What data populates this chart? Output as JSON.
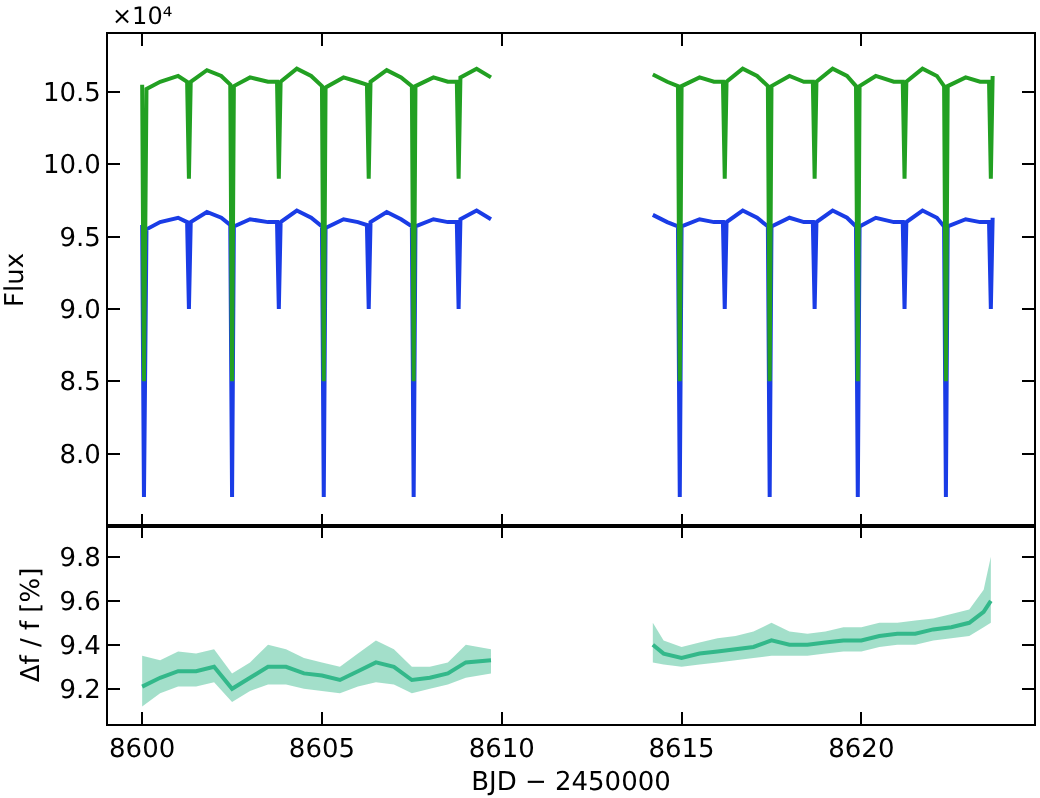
{
  "chart_data": [
    {
      "type": "line",
      "ylabel": "Flux",
      "annotations": [
        "×10⁴"
      ],
      "xlim": [
        8599.05,
        8624.8
      ],
      "xticks": [
        8600,
        8605,
        8610,
        8615,
        8620
      ],
      "ylim": [
        7.5,
        10.9
      ],
      "yticks": [
        {
          "value": 8,
          "label": "8.0"
        },
        8.5,
        {
          "value": 9,
          "label": "9.0"
        },
        9.5,
        {
          "value": 10,
          "label": "10.0"
        },
        10.5
      ],
      "tick_labels": "y",
      "marker": "none",
      "line_style": "solid",
      "series": [
        {
          "color": "#1a3ce6",
          "x": [
            8600.0,
            8600.05,
            8600.12,
            8600.5,
            8601.0,
            8601.25,
            8601.3,
            8601.35,
            8601.8,
            8602.2,
            8602.45,
            8602.5,
            8602.55,
            8603.0,
            8603.5,
            8603.75,
            8603.8,
            8603.85,
            8604.3,
            8604.7,
            8605.0,
            8605.05,
            8605.1,
            8605.6,
            8606.0,
            8606.25,
            8606.3,
            8606.35,
            8606.8,
            8607.2,
            8607.5,
            8607.55,
            8607.6,
            8608.1,
            8608.5,
            8608.75,
            8608.8,
            8608.85,
            8609.3,
            8609.7,
            8612,
            8614.2,
            8614.6,
            8614.9,
            8614.95,
            8615.0,
            8615.5,
            8615.9,
            8616.15,
            8616.2,
            8616.25,
            8616.7,
            8617.1,
            8617.4,
            8617.45,
            8617.5,
            8618.0,
            8618.4,
            8618.65,
            8618.7,
            8618.75,
            8619.2,
            8619.6,
            8619.85,
            8619.9,
            8619.95,
            8620.4,
            8620.9,
            8621.15,
            8621.2,
            8621.25,
            8621.7,
            8622.1,
            8622.3,
            8622.35,
            8622.4,
            8622.9,
            8623.3,
            8623.55,
            8623.6,
            8623.65
          ],
          "values": [
            9.58,
            7.7,
            9.55,
            9.6,
            9.63,
            9.6,
            9.0,
            9.6,
            9.67,
            9.63,
            9.58,
            7.7,
            9.57,
            9.62,
            9.6,
            9.6,
            9.0,
            9.6,
            9.68,
            9.63,
            9.57,
            7.7,
            9.56,
            9.62,
            9.6,
            9.58,
            9.0,
            9.6,
            9.67,
            9.62,
            9.57,
            7.7,
            9.57,
            9.62,
            9.6,
            9.6,
            9.0,
            9.62,
            9.68,
            9.62,
            null,
            9.65,
            9.6,
            9.57,
            7.7,
            9.57,
            9.62,
            9.6,
            9.6,
            9.0,
            9.6,
            9.68,
            9.63,
            9.57,
            7.7,
            9.57,
            9.63,
            9.6,
            9.6,
            9.0,
            9.6,
            9.68,
            9.63,
            9.57,
            7.7,
            9.57,
            9.63,
            9.6,
            9.6,
            9.0,
            9.6,
            9.68,
            9.63,
            9.57,
            7.7,
            9.57,
            9.62,
            9.6,
            9.6,
            9.0,
            9.63
          ]
        },
        {
          "color": "#22a022",
          "x": [
            8600.0,
            8600.05,
            8600.12,
            8600.5,
            8601.0,
            8601.25,
            8601.3,
            8601.35,
            8601.8,
            8602.2,
            8602.45,
            8602.5,
            8602.55,
            8603.0,
            8603.5,
            8603.75,
            8603.8,
            8603.85,
            8604.3,
            8604.7,
            8605.0,
            8605.05,
            8605.1,
            8605.6,
            8606.0,
            8606.25,
            8606.3,
            8606.35,
            8606.8,
            8607.2,
            8607.5,
            8607.55,
            8607.6,
            8608.1,
            8608.5,
            8608.75,
            8608.8,
            8608.85,
            8609.3,
            8609.7,
            8612,
            8614.2,
            8614.6,
            8614.9,
            8614.95,
            8615.0,
            8615.5,
            8615.9,
            8616.15,
            8616.2,
            8616.25,
            8616.7,
            8617.1,
            8617.4,
            8617.45,
            8617.5,
            8618.0,
            8618.4,
            8618.65,
            8618.7,
            8618.75,
            8619.2,
            8619.6,
            8619.85,
            8619.9,
            8619.95,
            8620.4,
            8620.9,
            8621.15,
            8621.2,
            8621.25,
            8621.7,
            8622.1,
            8622.3,
            8622.35,
            8622.4,
            8622.9,
            8623.3,
            8623.55,
            8623.6,
            8623.65
          ],
          "values": [
            10.55,
            8.5,
            10.52,
            10.57,
            10.61,
            10.57,
            9.9,
            10.57,
            10.65,
            10.61,
            10.55,
            8.5,
            10.54,
            10.6,
            10.57,
            10.57,
            9.9,
            10.57,
            10.66,
            10.61,
            10.54,
            8.5,
            10.53,
            10.6,
            10.57,
            10.55,
            9.9,
            10.57,
            10.65,
            10.6,
            10.54,
            8.5,
            10.54,
            10.6,
            10.57,
            10.57,
            9.9,
            10.6,
            10.66,
            10.6,
            null,
            10.62,
            10.57,
            10.54,
            8.5,
            10.54,
            10.6,
            10.57,
            10.57,
            9.9,
            10.57,
            10.66,
            10.61,
            10.54,
            8.5,
            10.54,
            10.61,
            10.57,
            10.57,
            9.9,
            10.57,
            10.66,
            10.61,
            10.54,
            8.5,
            10.54,
            10.61,
            10.57,
            10.57,
            9.9,
            10.57,
            10.66,
            10.61,
            10.54,
            8.5,
            10.54,
            10.6,
            10.57,
            10.57,
            9.9,
            10.61
          ]
        }
      ]
    },
    {
      "type": "line",
      "xlabel": "BJD − 2450000",
      "ylabel": "Δf / f [%]",
      "xlim": [
        8599.05,
        8624.8
      ],
      "xticks": [
        8600,
        8605,
        8610,
        8615,
        8620
      ],
      "ylim": [
        9.04,
        9.94
      ],
      "yticks": [
        9.2,
        9.4,
        9.6,
        9.8
      ],
      "marker": "none",
      "line_style": "solid",
      "series": [
        {
          "color": "#33b88a",
          "x": [
            8600.0,
            8600.5,
            8601.0,
            8601.5,
            8602.0,
            8602.5,
            8603.0,
            8603.5,
            8604.0,
            8604.5,
            8605.0,
            8605.5,
            8606.0,
            8606.5,
            8607.0,
            8607.5,
            8608.0,
            8608.5,
            8609.0,
            8609.7,
            8612,
            8614.2,
            8614.5,
            8615.0,
            8615.5,
            8616.0,
            8616.5,
            8617.0,
            8617.5,
            8618.0,
            8618.5,
            8619.0,
            8619.5,
            8620.0,
            8620.5,
            8621.0,
            8621.5,
            8622.0,
            8622.5,
            8623.0,
            8623.4,
            8623.6
          ],
          "values": [
            9.21,
            9.25,
            9.28,
            9.28,
            9.3,
            9.2,
            9.25,
            9.3,
            9.3,
            9.27,
            9.26,
            9.24,
            9.28,
            9.32,
            9.3,
            9.24,
            9.25,
            9.27,
            9.32,
            9.33,
            null,
            9.4,
            9.36,
            9.34,
            9.36,
            9.37,
            9.38,
            9.39,
            9.42,
            9.4,
            9.4,
            9.41,
            9.42,
            9.42,
            9.44,
            9.45,
            9.45,
            9.47,
            9.48,
            9.5,
            9.55,
            9.6
          ],
          "lower": [
            9.12,
            9.18,
            9.21,
            9.21,
            9.23,
            9.14,
            9.19,
            9.22,
            9.22,
            9.2,
            9.19,
            9.18,
            9.21,
            9.23,
            9.22,
            9.18,
            9.2,
            9.22,
            9.25,
            9.27,
            null,
            9.32,
            9.31,
            9.3,
            9.31,
            9.32,
            9.33,
            9.34,
            9.35,
            9.35,
            9.35,
            9.36,
            9.37,
            9.37,
            9.39,
            9.4,
            9.4,
            9.42,
            9.43,
            9.44,
            9.48,
            9.5
          ],
          "upper": [
            9.35,
            9.33,
            9.37,
            9.36,
            9.38,
            9.27,
            9.32,
            9.4,
            9.38,
            9.34,
            9.32,
            9.3,
            9.36,
            9.42,
            9.38,
            9.3,
            9.3,
            9.32,
            9.4,
            9.38,
            null,
            9.5,
            9.42,
            9.39,
            9.41,
            9.43,
            9.44,
            9.46,
            9.5,
            9.46,
            9.45,
            9.46,
            9.48,
            9.48,
            9.5,
            9.5,
            9.51,
            9.52,
            9.54,
            9.56,
            9.65,
            9.8
          ]
        }
      ]
    }
  ]
}
